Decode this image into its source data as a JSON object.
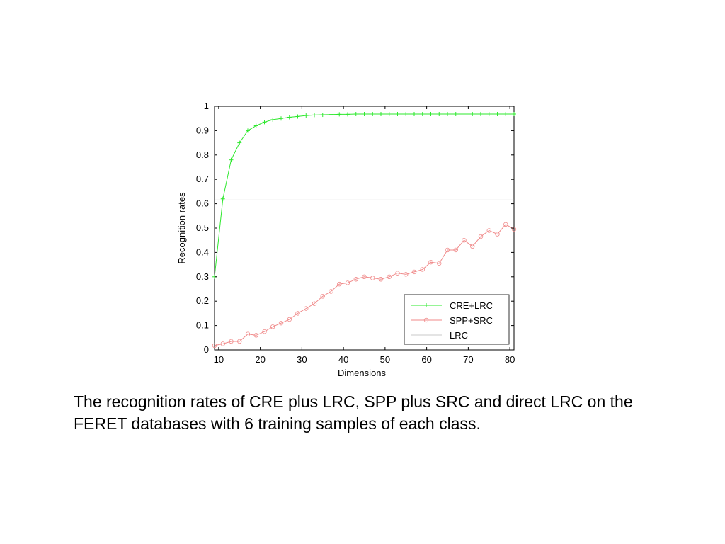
{
  "caption": "The recognition rates of CRE plus LRC, SPP plus SRC and direct LRC on the FERET databases with 6 training samples of each class.",
  "colors": {
    "cre_lrc": "#2ee82e",
    "spp_src": "#f08a8a",
    "lrc": "#c8c8c8",
    "axis": "#000000"
  },
  "chart_data": {
    "type": "line",
    "title": "",
    "xlabel": "Dimensions",
    "ylabel": "Recognition rates",
    "xlim": [
      9,
      81
    ],
    "ylim": [
      0,
      1
    ],
    "xticks": [
      10,
      20,
      30,
      40,
      50,
      60,
      70,
      80
    ],
    "yticks": [
      0,
      0.1,
      0.2,
      0.3,
      0.4,
      0.5,
      0.6,
      0.7,
      0.8,
      0.9,
      1
    ],
    "xtick_labels": [
      "10",
      "20",
      "30",
      "40",
      "50",
      "60",
      "70",
      "80"
    ],
    "ytick_labels": [
      "0",
      "0.1",
      "0.2",
      "0.3",
      "0.4",
      "0.5",
      "0.6",
      "0.7",
      "0.8",
      "0.9",
      "1"
    ],
    "grid": false,
    "legend_position": "bottom-right",
    "series": [
      {
        "name": "CRE+LRC",
        "marker": "plus",
        "x": [
          9,
          11,
          13,
          15,
          17,
          19,
          21,
          23,
          25,
          27,
          29,
          31,
          33,
          35,
          37,
          39,
          41,
          43,
          45,
          47,
          49,
          51,
          53,
          55,
          57,
          59,
          61,
          63,
          65,
          67,
          69,
          71,
          73,
          75,
          77,
          79,
          81
        ],
        "values": [
          0.3,
          0.62,
          0.78,
          0.85,
          0.9,
          0.92,
          0.935,
          0.945,
          0.95,
          0.955,
          0.958,
          0.962,
          0.964,
          0.965,
          0.966,
          0.967,
          0.967,
          0.968,
          0.968,
          0.968,
          0.968,
          0.968,
          0.968,
          0.968,
          0.968,
          0.968,
          0.968,
          0.968,
          0.968,
          0.968,
          0.968,
          0.968,
          0.968,
          0.968,
          0.968,
          0.968,
          0.968
        ]
      },
      {
        "name": "SPP+SRC",
        "marker": "circle",
        "x": [
          9,
          11,
          13,
          15,
          17,
          19,
          21,
          23,
          25,
          27,
          29,
          31,
          33,
          35,
          37,
          39,
          41,
          43,
          45,
          47,
          49,
          51,
          53,
          55,
          57,
          59,
          61,
          63,
          65,
          67,
          69,
          71,
          73,
          75,
          77,
          79,
          81
        ],
        "values": [
          0.018,
          0.025,
          0.035,
          0.035,
          0.065,
          0.06,
          0.075,
          0.095,
          0.11,
          0.125,
          0.15,
          0.17,
          0.19,
          0.22,
          0.24,
          0.27,
          0.275,
          0.29,
          0.3,
          0.295,
          0.29,
          0.3,
          0.315,
          0.31,
          0.32,
          0.33,
          0.36,
          0.355,
          0.41,
          0.41,
          0.45,
          0.425,
          0.465,
          0.49,
          0.475,
          0.515,
          0.495
        ]
      },
      {
        "name": "LRC",
        "marker": "none",
        "x": [
          9,
          81
        ],
        "values": [
          0.615,
          0.615
        ]
      }
    ]
  }
}
